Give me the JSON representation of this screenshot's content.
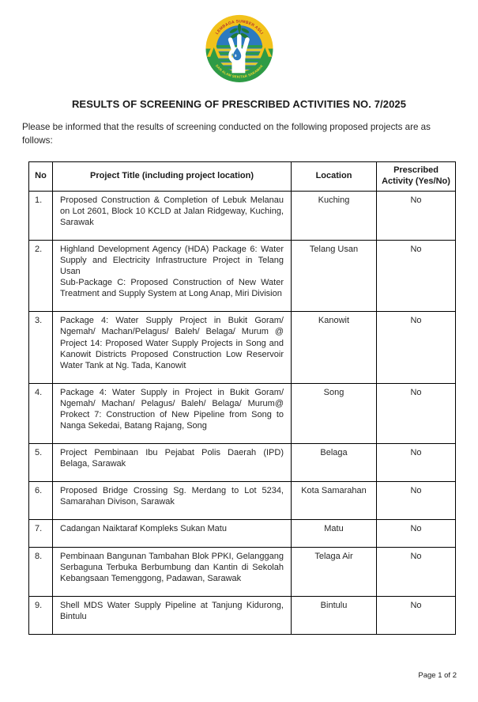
{
  "page": {
    "background": "#ffffff",
    "footer_page_label": "Page 1 of 2"
  },
  "logo": {
    "top_arc_text": "LEMBAGA SUMBER ASLI",
    "bottom_arc_text": "DAN ALAM SEKITAR SARAWAK",
    "colors": {
      "band_yellow": "#F2C21B",
      "band_green": "#2E9B46",
      "center_blue": "#2C7AC0",
      "arc_text_red": "#B5332A",
      "arc_text_yellow": "#F5D833",
      "stripe_green": "#2E9B46",
      "stripe_yellow": "#DFCA30",
      "leaf_green": "#1E7A34",
      "drop_blue": "#2C7AC0",
      "hand_white": "#FFFFFF"
    }
  },
  "document": {
    "title": "RESULTS OF SCREENING OF PRESCRIBED ACTIVITIES NO. 7/2025",
    "intro": "Please be informed that the results of screening conducted on the following proposed projects are as follows:"
  },
  "table": {
    "headers": {
      "no": "No",
      "project_title": "Project Title (including project location)",
      "location": "Location",
      "prescribed": "Prescribed Activity (Yes/No)"
    },
    "rows": [
      {
        "no": "1.",
        "title_lines": [
          "Proposed Construction & Completion of Lebuk Melanau on Lot 2601, Block 10 KCLD at Jalan Ridgeway, Kuching, Sarawak"
        ],
        "location": "Kuching",
        "prescribed": "No"
      },
      {
        "no": "2.",
        "title_lines": [
          "Highland Development Agency (HDA) Package 6: Water Supply and Electricity Infrastructure Project in Telang Usan",
          "Sub-Package C: Proposed Construction of New Water Treatment and Supply System at Long Anap, Miri Division"
        ],
        "location": "Telang Usan",
        "prescribed": "No"
      },
      {
        "no": "3.",
        "title_lines": [
          "Package 4: Water Supply Project in Bukit Goram/ Ngemah/ Machan/Pelagus/ Baleh/ Belaga/ Murum @ Project 14: Proposed Water Supply Projects in Song and Kanowit Districts Proposed Construction Low Reservoir Water Tank at Ng. Tada, Kanowit"
        ],
        "location": "Kanowit",
        "prescribed": "No"
      },
      {
        "no": "4.",
        "title_lines": [
          "Package 4: Water Supply in Project in Bukit Goram/ Ngemah/ Machan/ Pelagus/ Baleh/ Belaga/ Murum@ Prokect 7: Construction of New Pipeline from Song to Nanga Sekedai, Batang Rajang, Song"
        ],
        "location": "Song",
        "prescribed": "No"
      },
      {
        "no": "5.",
        "title_lines": [
          "Project Pembinaan Ibu Pejabat Polis Daerah (IPD) Belaga, Sarawak"
        ],
        "location": "Belaga",
        "prescribed": "No"
      },
      {
        "no": "6.",
        "title_lines": [
          "Proposed Bridge Crossing Sg. Merdang to Lot 5234, Samarahan Divison, Sarawak"
        ],
        "location": "Kota Samarahan",
        "prescribed": "No"
      },
      {
        "no": "7.",
        "title_lines": [
          "Cadangan Naiktaraf Kompleks Sukan Matu"
        ],
        "location": "Matu",
        "prescribed": "No"
      },
      {
        "no": "8.",
        "title_lines": [
          "Pembinaan Bangunan Tambahan Blok PPKI, Gelanggang Serbaguna Terbuka Berbumbung dan Kantin di Sekolah Kebangsaan Temenggong, Padawan, Sarawak"
        ],
        "location": "Telaga Air",
        "prescribed": "No"
      },
      {
        "no": "9.",
        "title_lines": [
          "Shell MDS Water Supply Pipeline at Tanjung Kidurong, Bintulu"
        ],
        "location": "Bintulu",
        "prescribed": "No"
      }
    ]
  }
}
